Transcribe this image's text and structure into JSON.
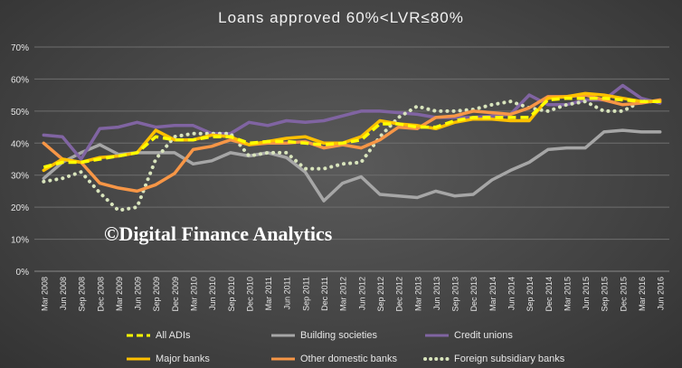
{
  "chart_data": {
    "type": "line",
    "title": "Loans approved  60%<LVR≤80%",
    "xlabel": "",
    "ylabel": "",
    "ylim": [
      0,
      70
    ],
    "yticks": [
      "0%",
      "10%",
      "20%",
      "30%",
      "40%",
      "50%",
      "60%",
      "70%"
    ],
    "grid": true,
    "legend": "bottom",
    "categories": [
      "Mar 2008",
      "Jun 2008",
      "Sep 2008",
      "Dec 2008",
      "Mar 2009",
      "Jun 2009",
      "Sep 2009",
      "Dec 2009",
      "Mar 2010",
      "Jun 2010",
      "Sep 2010",
      "Dec 2010",
      "Mar 2011",
      "Jun 2011",
      "Sep 2011",
      "Dec 2011",
      "Mar 2012",
      "Jun 2012",
      "Sep 2012",
      "Dec 2012",
      "Mar 2013",
      "Jun 2013",
      "Sep 2013",
      "Dec 2013",
      "Mar 2014",
      "Jun 2014",
      "Sep 2014",
      "Dec 2014",
      "Mar 2015",
      "Jun 2015",
      "Sep 2015",
      "Dec 2015",
      "Mar 2016",
      "Jun 2016"
    ],
    "series": [
      {
        "name": "All ADIs",
        "color": "#ffff00",
        "dash": "dash",
        "values": [
          32.5,
          34,
          34,
          35,
          36,
          37,
          42,
          41,
          41,
          42,
          42,
          40,
          40.5,
          40.5,
          40,
          39.5,
          40,
          41,
          46,
          46,
          45,
          45,
          47,
          48,
          48,
          48,
          48,
          53.5,
          54,
          54,
          54,
          53.5,
          53,
          53
        ]
      },
      {
        "name": "Building societies",
        "color": "#a6a6a6",
        "dash": "solid",
        "values": [
          29,
          34,
          37,
          39.5,
          36.5,
          37,
          37,
          37,
          33.5,
          34.5,
          37,
          36,
          37,
          35.5,
          31,
          22,
          27.5,
          29.5,
          24,
          23.5,
          23,
          25,
          23.5,
          24,
          28.5,
          31.5,
          34,
          38,
          38.5,
          38.5,
          43.5,
          44,
          43.5,
          43.5
        ]
      },
      {
        "name": "Credit unions",
        "color": "#8064a2",
        "dash": "solid",
        "values": [
          42.5,
          42,
          35,
          44.5,
          45,
          46.5,
          45,
          45.5,
          45.5,
          43,
          43,
          46.5,
          45.5,
          47,
          46.5,
          47,
          48.5,
          50,
          50,
          49.5,
          49,
          48,
          48,
          48,
          48.5,
          49,
          55,
          52,
          52,
          53.5,
          53.5,
          58,
          54,
          52.5
        ]
      },
      {
        "name": "Major banks",
        "color": "#ffc000",
        "dash": "solid",
        "values": [
          31.5,
          35,
          34,
          35.5,
          36,
          37,
          44,
          41,
          41,
          42.5,
          42,
          39.5,
          40.5,
          41.5,
          42,
          40,
          40,
          42,
          47,
          46,
          45.5,
          44.5,
          46.5,
          47.5,
          47.5,
          47,
          47,
          54,
          54.5,
          55.5,
          55,
          54,
          53,
          53
        ]
      },
      {
        "name": "Other domestic banks",
        "color": "#f79646",
        "dash": "solid",
        "values": [
          40,
          35,
          34,
          27.5,
          26,
          25,
          27,
          30.5,
          38,
          39,
          41,
          39.5,
          40,
          40,
          40.5,
          38.5,
          39.5,
          38.5,
          41,
          45,
          44.5,
          48,
          48.5,
          50,
          49.5,
          49,
          51,
          54.5,
          54.5,
          55,
          53.5,
          52,
          52.5,
          53.5
        ]
      },
      {
        "name": "Foreign subsidiary banks",
        "color": "#d8e4bc",
        "dash": "dot",
        "values": [
          28,
          29,
          31,
          24.5,
          19,
          20,
          35,
          42,
          43,
          43,
          43,
          36,
          37,
          37,
          32,
          32,
          33.5,
          34,
          42,
          48,
          51.5,
          50,
          50,
          50.5,
          52,
          53,
          51,
          50,
          52,
          53,
          50,
          50,
          53,
          53
        ]
      }
    ]
  },
  "watermark": "©Digital Finance Analytics"
}
